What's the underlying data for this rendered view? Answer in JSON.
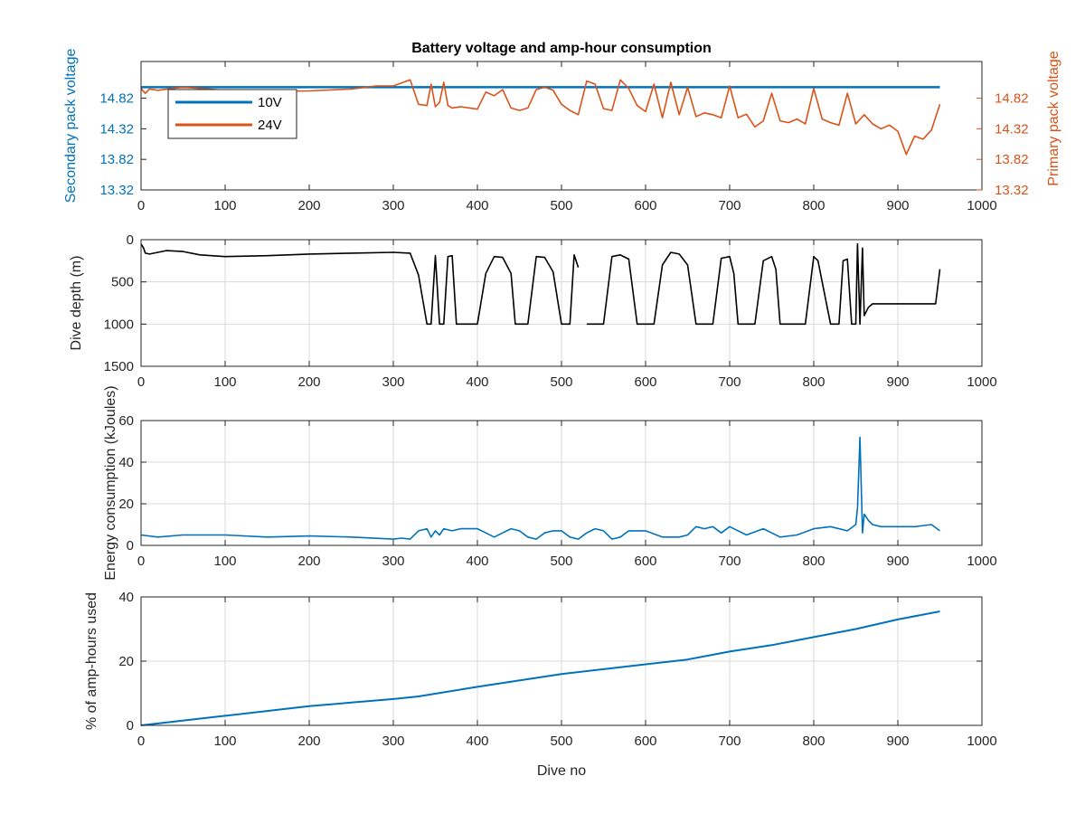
{
  "figure": {
    "title": "Battery voltage and amp-hour consumption"
  },
  "colors": {
    "blue": "#0072BD",
    "orange": "#D95319",
    "black": "#000000"
  },
  "chart_data": [
    {
      "type": "line",
      "name": "voltage",
      "title": "Battery voltage and amp-hour consumption",
      "xlabel": "",
      "ylabel": "Secondary pack voltage",
      "ylabel_right": "Primary pack voltage",
      "xlim": [
        0,
        1000
      ],
      "ylim": [
        13.32,
        15.42
      ],
      "ylim_right": [
        13.32,
        15.42
      ],
      "xticks": [
        "0",
        "100",
        "200",
        "300",
        "400",
        "500",
        "600",
        "700",
        "800",
        "900",
        "1000"
      ],
      "yticks": [
        "13.32",
        "13.82",
        "14.32",
        "14.82"
      ],
      "yticks_right": [
        "13.32",
        "13.82",
        "14.32",
        "14.82"
      ],
      "grid": false,
      "legend": {
        "placement": "top-left",
        "entries": [
          "10V",
          "24V"
        ]
      },
      "series": [
        {
          "name": "10V",
          "axis": "left",
          "x": [
            0,
            950
          ],
          "y": [
            15.0,
            15.0
          ]
        },
        {
          "name": "24V",
          "axis": "right",
          "x": [
            0,
            5,
            10,
            20,
            50,
            100,
            150,
            200,
            250,
            280,
            300,
            320,
            330,
            340,
            345,
            350,
            355,
            360,
            365,
            370,
            380,
            400,
            410,
            420,
            430,
            440,
            450,
            460,
            470,
            480,
            490,
            500,
            510,
            520,
            530,
            540,
            550,
            560,
            570,
            580,
            590,
            600,
            610,
            620,
            630,
            640,
            650,
            660,
            670,
            680,
            690,
            700,
            710,
            720,
            730,
            740,
            750,
            760,
            770,
            780,
            790,
            800,
            810,
            820,
            830,
            840,
            850,
            860,
            870,
            880,
            890,
            900,
            910,
            920,
            930,
            940,
            950
          ],
          "y": [
            14.98,
            14.9,
            14.97,
            14.95,
            15.0,
            14.95,
            14.93,
            14.94,
            14.97,
            15.02,
            15.02,
            15.12,
            14.72,
            14.7,
            15.05,
            14.68,
            14.75,
            15.08,
            14.7,
            14.66,
            14.68,
            14.64,
            14.92,
            14.86,
            14.96,
            14.66,
            14.62,
            14.66,
            14.96,
            15.0,
            14.95,
            14.72,
            14.62,
            14.55,
            15.1,
            15.05,
            14.65,
            14.62,
            15.12,
            14.98,
            14.7,
            14.6,
            15.05,
            14.5,
            15.08,
            14.55,
            15.0,
            14.52,
            14.58,
            14.55,
            14.5,
            15.02,
            14.5,
            14.56,
            14.35,
            14.45,
            14.9,
            14.45,
            14.42,
            14.48,
            14.4,
            14.98,
            14.48,
            14.42,
            14.38,
            14.9,
            14.4,
            14.55,
            14.4,
            14.32,
            14.38,
            14.28,
            13.9,
            14.2,
            14.15,
            14.3,
            14.72
          ]
        }
      ]
    },
    {
      "type": "line",
      "name": "depth",
      "xlabel": "",
      "ylabel": "Dive depth (m)",
      "xlim": [
        0,
        1000
      ],
      "ylim": [
        0,
        1500
      ],
      "y_reversed": true,
      "xticks": [
        "0",
        "100",
        "200",
        "300",
        "400",
        "500",
        "600",
        "700",
        "800",
        "900",
        "1000"
      ],
      "yticks": [
        "0",
        "500",
        "1000",
        "1500"
      ],
      "grid": true,
      "series": [
        {
          "x": [
            0,
            3,
            5,
            10,
            30,
            50,
            70,
            100,
            150,
            200,
            250,
            300,
            320,
            330,
            340,
            345,
            350,
            355,
            360,
            365,
            370,
            375,
            380,
            400,
            410,
            420,
            430,
            440,
            445,
            450,
            460,
            470,
            480,
            490,
            500,
            505,
            510,
            515,
            520,
            525,
            530,
            540,
            550,
            560,
            570,
            580,
            590,
            600,
            610,
            620,
            630,
            640,
            650,
            660,
            670,
            680,
            690,
            700,
            705,
            710,
            720,
            730,
            740,
            750,
            755,
            760,
            770,
            780,
            790,
            800,
            805,
            810,
            820,
            830,
            835,
            840,
            845,
            850,
            852,
            855,
            858,
            860,
            865,
            870,
            880,
            900,
            920,
            940,
            945,
            950
          ],
          "y": [
            50,
            100,
            160,
            170,
            130,
            140,
            180,
            200,
            190,
            170,
            160,
            150,
            160,
            420,
            1000,
            1000,
            190,
            1000,
            1000,
            200,
            190,
            1000,
            1000,
            1000,
            400,
            200,
            210,
            400,
            1000,
            1000,
            1000,
            200,
            210,
            380,
            1000,
            1000,
            1000,
            180,
            330,
            null,
            1000,
            1000,
            1000,
            200,
            180,
            230,
            1000,
            1000,
            1000,
            300,
            150,
            170,
            300,
            1000,
            1000,
            1000,
            220,
            200,
            400,
            1000,
            1000,
            1000,
            250,
            200,
            350,
            1000,
            1000,
            1000,
            1000,
            200,
            250,
            500,
            1000,
            1000,
            250,
            230,
            1000,
            1000,
            50,
            1000,
            100,
            900,
            800,
            760,
            760,
            760,
            760,
            760,
            760,
            350
          ]
        }
      ]
    },
    {
      "type": "line",
      "name": "energy",
      "xlabel": "",
      "ylabel": "Energy consumption (kJoules)",
      "xlim": [
        0,
        1000
      ],
      "ylim": [
        0,
        60
      ],
      "xticks": [
        "0",
        "100",
        "200",
        "300",
        "400",
        "500",
        "600",
        "700",
        "800",
        "900",
        "1000"
      ],
      "yticks": [
        "0",
        "20",
        "40",
        "60"
      ],
      "grid": true,
      "series": [
        {
          "x": [
            0,
            20,
            50,
            100,
            150,
            200,
            250,
            300,
            310,
            320,
            330,
            340,
            345,
            350,
            355,
            360,
            370,
            380,
            400,
            410,
            420,
            430,
            440,
            450,
            460,
            470,
            480,
            490,
            500,
            510,
            520,
            530,
            540,
            550,
            560,
            570,
            580,
            600,
            620,
            640,
            650,
            660,
            670,
            680,
            690,
            700,
            720,
            740,
            760,
            780,
            800,
            820,
            840,
            850,
            852,
            855,
            858,
            860,
            865,
            870,
            880,
            900,
            920,
            940,
            950
          ],
          "y": [
            5,
            4,
            5,
            5,
            4,
            4.5,
            4,
            3,
            3.5,
            3,
            7,
            8,
            4,
            7,
            5,
            8,
            7,
            8,
            8,
            6,
            4,
            6,
            8,
            7,
            4,
            3,
            6,
            7,
            7,
            4,
            3,
            6,
            8,
            7,
            3,
            4,
            7,
            7,
            4,
            4,
            5,
            9,
            8,
            9,
            6,
            9,
            5,
            8,
            4,
            5,
            8,
            9,
            7,
            10,
            18,
            52,
            6,
            15,
            12,
            10,
            9,
            9,
            9,
            10,
            7
          ]
        }
      ]
    },
    {
      "type": "line",
      "name": "amphours",
      "xlabel": "Dive no",
      "ylabel": "% of amp-hours used",
      "xlim": [
        0,
        1000
      ],
      "ylim": [
        0,
        40
      ],
      "xticks": [
        "0",
        "100",
        "200",
        "300",
        "400",
        "500",
        "600",
        "700",
        "800",
        "900",
        "1000"
      ],
      "yticks": [
        "0",
        "20",
        "40"
      ],
      "grid": true,
      "series": [
        {
          "x": [
            0,
            100,
            200,
            300,
            330,
            400,
            500,
            600,
            650,
            700,
            750,
            800,
            850,
            900,
            950
          ],
          "y": [
            0,
            3,
            6,
            8.2,
            9,
            12,
            16,
            19,
            20.5,
            23,
            25,
            27.5,
            30,
            33,
            35.5
          ]
        }
      ]
    }
  ]
}
